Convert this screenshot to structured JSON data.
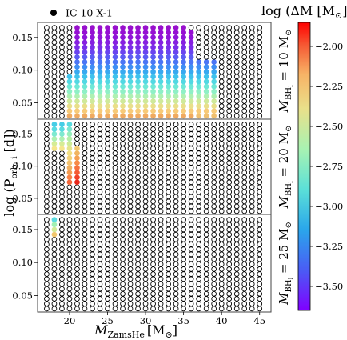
{
  "chart_data": {
    "type": "scatter",
    "legend": {
      "label": "IC 10 X-1",
      "placement": "top-left"
    },
    "xlabel": "M_ZamsHe [M⊙]",
    "ylabel": "log (P_orb,i [d])",
    "colorbar": {
      "title": "log (ΔM [M⊙])",
      "range": [
        -3.65,
        -1.85
      ],
      "ticks": [
        -2.0,
        -2.25,
        -2.5,
        -2.75,
        -3.0,
        -3.25,
        -3.5
      ],
      "tick_labels": [
        "−2.00",
        "−2.25",
        "−2.50",
        "−2.75",
        "−3.00",
        "−3.25",
        "−3.50"
      ]
    },
    "xlim": [
      15.8,
      46.5
    ],
    "xticks": [
      15,
      20,
      25,
      30,
      35,
      40,
      45
    ],
    "ylim": [
      0.025,
      0.173
    ],
    "yticks": [
      0.05,
      0.1,
      0.15
    ],
    "ytick_labels": [
      "0.05",
      "0.10",
      "0.15"
    ],
    "grid_x": {
      "start": 17,
      "stop": 45,
      "step": 1
    },
    "grid_y": {
      "start": 0.03,
      "stop": 0.165,
      "step": 0.0075
    },
    "panels": [
      {
        "label": "M_BH,i = 10 M⊙",
        "colored_columns": [
          {
            "x": 20,
            "y_max": 0.12,
            "colors": [
              "#f0aa60",
              "#f7ca78",
              "#e9df8a",
              "#cfe99a",
              "#aef0b2",
              "#8ff0c6",
              "#6fe8d6",
              "#52d8e3",
              "#3fc2ec"
            ]
          },
          {
            "x": 21,
            "y_max": 0.165,
            "colors": [
              "#f0aa60",
              "#f7ca78",
              "#e9df8a",
              "#cfe99a",
              "#aef0b2",
              "#8ff0c6",
              "#6fe8d6",
              "#52d8e3",
              "#3fc2ec",
              "#38a9f0",
              "#3f8ff4",
              "#4c75f5",
              "#5b5cf3",
              "#6a44ef",
              "#7a2ee8",
              "#8620e0",
              "#8f16d8",
              "#9510d2",
              "#9810cd"
            ]
          },
          {
            "x": 22,
            "y_max": 0.165,
            "colors": [
              "#f0aa60",
              "#f7ca78",
              "#e9df8a",
              "#cfe99a",
              "#aef0b2",
              "#8ff0c6",
              "#6fe8d6",
              "#52d8e3",
              "#3fc2ec",
              "#38a9f0",
              "#3f8ff4",
              "#4c75f5",
              "#5b5cf3",
              "#6a44ef",
              "#7a2ee8",
              "#8620e0",
              "#8f16d8",
              "#9510d2",
              "#9810cd"
            ]
          },
          {
            "x": 23,
            "y_max": 0.165,
            "colors": [
              "#f0aa60",
              "#f7ca78",
              "#e9df8a",
              "#cfe99a",
              "#aef0b2",
              "#8ff0c6",
              "#6fe8d6",
              "#52d8e3",
              "#3fc2ec",
              "#38a9f0",
              "#3f8ff4",
              "#4c75f5",
              "#5b5cf3",
              "#6a44ef",
              "#7a2ee8",
              "#8620e0",
              "#8f16d8",
              "#9510d2",
              "#9810cd"
            ]
          },
          {
            "x": 24,
            "y_max": 0.165,
            "colors": [
              "#f0aa60",
              "#f7ca78",
              "#e9df8a",
              "#cfe99a",
              "#aef0b2",
              "#8ff0c6",
              "#6fe8d6",
              "#52d8e3",
              "#3fc2ec",
              "#38a9f0",
              "#3f8ff4",
              "#4c75f5",
              "#5b5cf3",
              "#6a44ef",
              "#7a2ee8",
              "#8620e0",
              "#8f16d8",
              "#9510d2",
              "#9810cd"
            ]
          },
          {
            "x": 25,
            "y_max": 0.165,
            "colors": [
              "#f0aa60",
              "#f7ca78",
              "#e9df8a",
              "#cfe99a",
              "#aef0b2",
              "#8ff0c6",
              "#6fe8d6",
              "#52d8e3",
              "#3fc2ec",
              "#38a9f0",
              "#3f8ff4",
              "#4c75f5",
              "#5b5cf3",
              "#6a44ef",
              "#7a2ee8",
              "#8620e0",
              "#8f16d8",
              "#9510d2",
              "#9810cd"
            ]
          },
          {
            "x": 26,
            "y_max": 0.165,
            "colors": [
              "#f0aa60",
              "#f7ca78",
              "#e9df8a",
              "#cfe99a",
              "#aef0b2",
              "#8ff0c6",
              "#6fe8d6",
              "#52d8e3",
              "#3fc2ec",
              "#38a9f0",
              "#3f8ff4",
              "#4c75f5",
              "#5b5cf3",
              "#6a44ef",
              "#7a2ee8",
              "#8620e0",
              "#8f16d8",
              "#9510d2",
              "#9810cd"
            ]
          },
          {
            "x": 27,
            "y_max": 0.165,
            "colors": [
              "#f0aa60",
              "#f7ca78",
              "#e9df8a",
              "#cfe99a",
              "#aef0b2",
              "#8ff0c6",
              "#6fe8d6",
              "#52d8e3",
              "#3fc2ec",
              "#38a9f0",
              "#3f8ff4",
              "#4c75f5",
              "#5b5cf3",
              "#6a44ef",
              "#7a2ee8",
              "#8620e0",
              "#8f16d8",
              "#9510d2",
              "#9810cd"
            ]
          },
          {
            "x": 28,
            "y_max": 0.165,
            "colors": [
              "#f0aa60",
              "#f7ca78",
              "#e9df8a",
              "#cfe99a",
              "#aef0b2",
              "#8ff0c6",
              "#6fe8d6",
              "#52d8e3",
              "#3fc2ec",
              "#38a9f0",
              "#3f8ff4",
              "#4c75f5",
              "#5b5cf3",
              "#6a44ef",
              "#7a2ee8",
              "#8620e0",
              "#8f16d8",
              "#9510d2",
              "#9810cd"
            ]
          },
          {
            "x": 29,
            "y_max": 0.165,
            "colors": [
              "#f0aa60",
              "#f7ca78",
              "#e9df8a",
              "#cfe99a",
              "#aef0b2",
              "#8ff0c6",
              "#6fe8d6",
              "#52d8e3",
              "#3fc2ec",
              "#38a9f0",
              "#3f8ff4",
              "#4c75f5",
              "#5b5cf3",
              "#6a44ef",
              "#7a2ee8",
              "#8620e0",
              "#8f16d8",
              "#9510d2",
              "#9810cd"
            ]
          },
          {
            "x": 30,
            "y_max": 0.165,
            "colors": [
              "#f0aa60",
              "#f7ca78",
              "#e9df8a",
              "#cfe99a",
              "#aef0b2",
              "#8ff0c6",
              "#6fe8d6",
              "#52d8e3",
              "#3fc2ec",
              "#38a9f0",
              "#3f8ff4",
              "#4c75f5",
              "#5b5cf3",
              "#6a44ef",
              "#7a2ee8",
              "#8620e0",
              "#8f16d8",
              "#9510d2",
              "#9810cd"
            ]
          },
          {
            "x": 31,
            "y_max": 0.165,
            "colors": [
              "#f0aa60",
              "#f7ca78",
              "#e9df8a",
              "#cfe99a",
              "#aef0b2",
              "#8ff0c6",
              "#6fe8d6",
              "#52d8e3",
              "#3fc2ec",
              "#38a9f0",
              "#3f8ff4",
              "#4c75f5",
              "#5b5cf3",
              "#6a44ef",
              "#7a2ee8",
              "#8620e0",
              "#8f16d8",
              "#9510d2",
              "#9810cd"
            ]
          },
          {
            "x": 32,
            "y_max": 0.165,
            "colors": [
              "#f0aa60",
              "#f7ca78",
              "#e9df8a",
              "#cfe99a",
              "#aef0b2",
              "#8ff0c6",
              "#6fe8d6",
              "#52d8e3",
              "#3fc2ec",
              "#38a9f0",
              "#3f8ff4",
              "#4c75f5",
              "#5b5cf3",
              "#6a44ef",
              "#7a2ee8",
              "#8620e0",
              "#8f16d8",
              "#9510d2",
              "#9810cd"
            ]
          },
          {
            "x": 33,
            "y_max": 0.165,
            "colors": [
              "#f0aa60",
              "#f7ca78",
              "#e9df8a",
              "#cfe99a",
              "#aef0b2",
              "#8ff0c6",
              "#6fe8d6",
              "#52d8e3",
              "#3fc2ec",
              "#38a9f0",
              "#3f8ff4",
              "#4c75f5",
              "#5b5cf3",
              "#6a44ef",
              "#7a2ee8",
              "#8620e0",
              "#8f16d8",
              "#9510d2",
              "#9810cd"
            ]
          },
          {
            "x": 34,
            "y_max": 0.165,
            "colors": [
              "#f0aa60",
              "#f7ca78",
              "#e9df8a",
              "#cfe99a",
              "#aef0b2",
              "#8ff0c6",
              "#6fe8d6",
              "#52d8e3",
              "#3fc2ec",
              "#38a9f0",
              "#3f8ff4",
              "#4c75f5",
              "#5b5cf3",
              "#6a44ef",
              "#7a2ee8",
              "#8620e0",
              "#8f16d8",
              "#9510d2",
              "#9810cd"
            ]
          },
          {
            "x": 35,
            "y_max": 0.165,
            "colors": [
              "#f0aa60",
              "#f7ca78",
              "#e9df8a",
              "#cfe99a",
              "#aef0b2",
              "#8ff0c6",
              "#6fe8d6",
              "#52d8e3",
              "#3fc2ec",
              "#38a9f0",
              "#3f8ff4",
              "#4c75f5",
              "#5b5cf3",
              "#6a44ef",
              "#7a2ee8",
              "#8620e0",
              "#8f16d8",
              "#9510d2",
              "#9810cd"
            ]
          },
          {
            "x": 36,
            "y_max": 0.1575,
            "colors": [
              "#f0aa60",
              "#f7ca78",
              "#e9df8a",
              "#cfe99a",
              "#aef0b2",
              "#8ff0c6",
              "#6fe8d6",
              "#52d8e3",
              "#3fc2ec",
              "#38a9f0",
              "#3f8ff4",
              "#4c75f5",
              "#5b5cf3",
              "#6a44ef",
              "#7a2ee8",
              "#8620e0",
              "#8f16d8",
              "#9510d2"
            ]
          },
          {
            "x": 37,
            "y_max": 0.1125,
            "colors": [
              "#f0c070",
              "#f7ca78",
              "#e9df8a",
              "#cfe99a",
              "#aef0b2",
              "#8ff0c6",
              "#6fe8d6",
              "#52d8e3",
              "#3fc2ec",
              "#38a9f0",
              "#3f8ff4",
              "#4c75f5"
            ]
          },
          {
            "x": 38,
            "y_max": 0.1125,
            "colors": [
              "#f0c070",
              "#f7ca78",
              "#e9df8a",
              "#cfe99a",
              "#aef0b2",
              "#8ff0c6",
              "#6fe8d6",
              "#52d8e3",
              "#3fc2ec",
              "#38a9f0",
              "#3f8ff4",
              "#4c75f5"
            ]
          },
          {
            "x": 39,
            "y_max": 0.1125,
            "colors": [
              "#f0c070",
              "#f7ca78",
              "#e9df8a",
              "#cfe99a",
              "#aef0b2",
              "#8ff0c6",
              "#6fe8d6",
              "#52d8e3",
              "#3fc2ec",
              "#38a9f0",
              "#3f8ff4",
              "#4c75f5"
            ]
          }
        ]
      },
      {
        "label": "M_BH,i = 20 M⊙",
        "colored_columns": [
          {
            "x": 18,
            "y_min": 0.1275,
            "y_max": 0.165,
            "colors": [
              "#f5e68c",
              "#d6ec95",
              "#aef0b2",
              "#7fe9d0",
              "#58dbe0",
              "#46cde6"
            ]
          },
          {
            "x": 19,
            "y_min": 0.1275,
            "y_max": 0.165,
            "colors": [
              "#f5e68c",
              "#d6ec95",
              "#aef0b2",
              "#7fe9d0",
              "#58dbe0",
              "#46cde6"
            ]
          },
          {
            "x": 20,
            "y_min": 0.075,
            "y_max": 0.165,
            "colors": [
              "#f4683c",
              "#f78246",
              "#f39b52",
              "#f0b062",
              "#f2c170",
              "#f3d27c",
              "#f1de84",
              "#e4e58c",
              "#ceeb96",
              "#b5efa8",
              "#96efbc",
              "#7be7d0",
              "#58dbe0"
            ]
          },
          {
            "x": 21,
            "y_min": 0.075,
            "y_max": 0.1275,
            "colors": [
              "#e8281c",
              "#f0412a",
              "#f45a34",
              "#f6703e",
              "#f78a48",
              "#f4a054",
              "#f1b462",
              "#f2c872"
            ]
          }
        ]
      },
      {
        "label": "M_BH,i = 25 M⊙",
        "colored_columns": [
          {
            "x": 18,
            "y_min": 0.1425,
            "y_max": 0.165,
            "colors": [
              "#f1c66e",
              "#d2ea98",
              "#a2f0b4",
              "#5edce0"
            ]
          }
        ]
      }
    ]
  },
  "legend": {
    "label": "IC 10 X-1"
  },
  "axes": {
    "xlabel_main": "M",
    "xlabel_sub": "ZamsHe",
    "xlabel_unit": "[M",
    "xlabel_sun": "⊙",
    "xlabel_close": "]",
    "ylabel_prefix": "log (P",
    "ylabel_sub": "orb, i",
    "ylabel_suffix": " [d])"
  },
  "panels_text": [
    {
      "prefix": "M",
      "sub": "BH",
      "subsub": "i",
      "eq": " = 10 M",
      "sun": "⊙"
    },
    {
      "prefix": "M",
      "sub": "BH",
      "subsub": "i",
      "eq": " = 20 M",
      "sun": "⊙"
    },
    {
      "prefix": "M",
      "sub": "BH",
      "subsub": "i",
      "eq": " = 25 M",
      "sun": "⊙"
    }
  ],
  "colorbar_title": {
    "prefix": "log (ΔM [M",
    "sun": "⊙",
    "suffix": "])"
  }
}
